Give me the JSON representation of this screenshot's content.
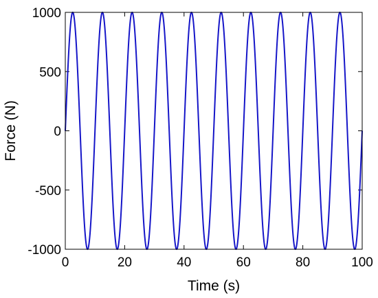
{
  "chart_data": {
    "type": "line",
    "xlabel": "Time (s)",
    "ylabel": "Force (N)",
    "xlim": [
      0,
      100
    ],
    "ylim": [
      -1000,
      1000
    ],
    "x_ticks": [
      0,
      20,
      40,
      60,
      80,
      100
    ],
    "y_ticks": [
      -1000,
      -500,
      0,
      500,
      1000
    ],
    "grid": false,
    "series": [
      {
        "amplitude": 1000,
        "period": 10,
        "phase": 0,
        "x_start": 0,
        "x_end": 100,
        "color": "#1515c8"
      }
    ]
  }
}
